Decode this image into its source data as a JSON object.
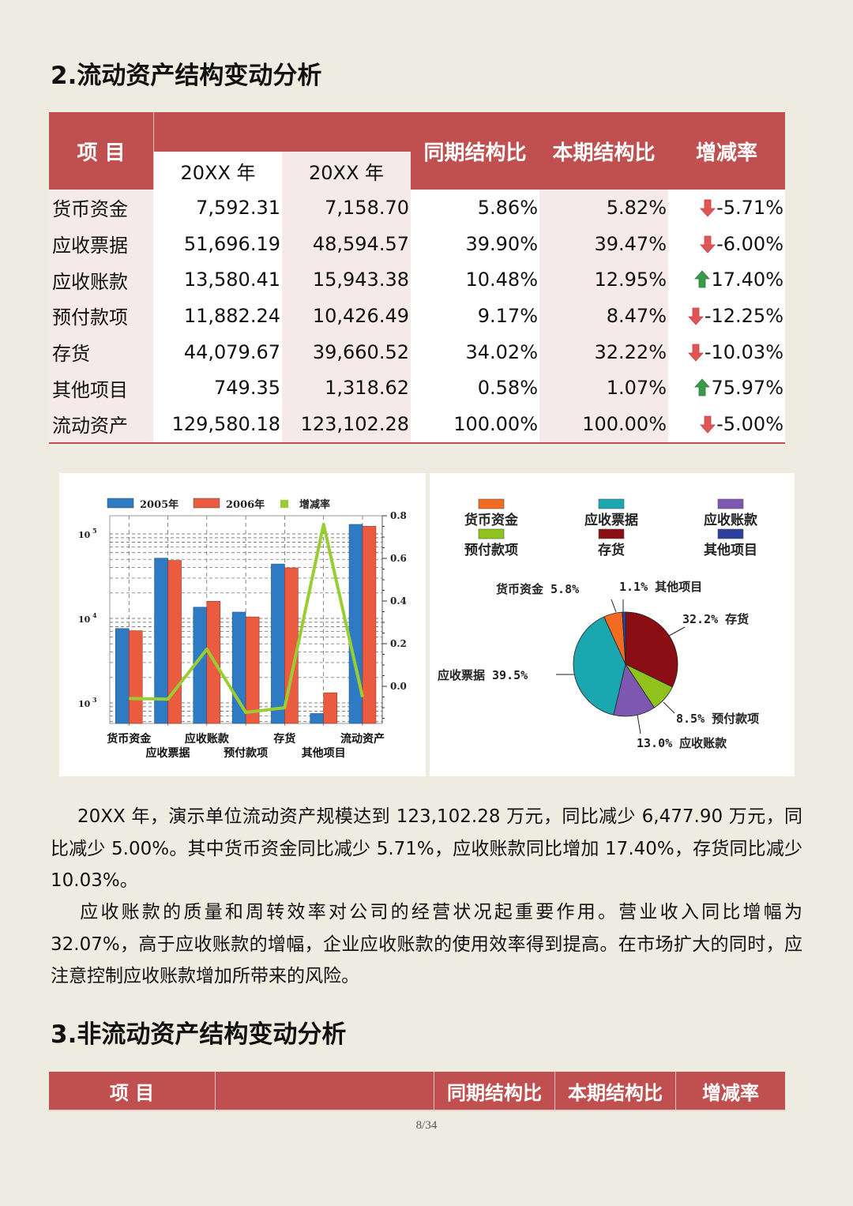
{
  "sections": {
    "current_assets_title": "2.流动资产结构变动分析",
    "non_current_assets_title": "3.非流动资产结构变动分析"
  },
  "table1": {
    "headers": {
      "item": "项  目",
      "year_prev": "20XX 年",
      "year_curr": "20XX 年",
      "prev_ratio": "同期结构比",
      "curr_ratio": "本期结构比",
      "change_rate": "增减率"
    },
    "rows": [
      {
        "item": "货币资金",
        "prev": "7,592.31",
        "curr": "7,158.70",
        "prev_ratio": "5.86%",
        "curr_ratio": "5.82%",
        "change": "-5.71%",
        "trend": "down"
      },
      {
        "item": "应收票据",
        "prev": "51,696.19",
        "curr": "48,594.57",
        "prev_ratio": "39.90%",
        "curr_ratio": "39.47%",
        "change": "-6.00%",
        "trend": "down"
      },
      {
        "item": "应收账款",
        "prev": "13,580.41",
        "curr": "15,943.38",
        "prev_ratio": "10.48%",
        "curr_ratio": "12.95%",
        "change": "17.40%",
        "trend": "up"
      },
      {
        "item": "预付款项",
        "prev": "11,882.24",
        "curr": "10,426.49",
        "prev_ratio": "9.17%",
        "curr_ratio": "8.47%",
        "change": "-12.25%",
        "trend": "down"
      },
      {
        "item": "存货",
        "prev": "44,079.67",
        "curr": "39,660.52",
        "prev_ratio": "34.02%",
        "curr_ratio": "32.22%",
        "change": "-10.03%",
        "trend": "down"
      },
      {
        "item": "其他项目",
        "prev": "749.35",
        "curr": "1,318.62",
        "prev_ratio": "0.58%",
        "curr_ratio": "1.07%",
        "change": "75.97%",
        "trend": "up"
      },
      {
        "item": "流动资产",
        "prev": "129,580.18",
        "curr": "123,102.28",
        "prev_ratio": "100.00%",
        "curr_ratio": "100.00%",
        "change": "-5.00%",
        "trend": "down"
      }
    ]
  },
  "colors": {
    "header_red": "#c0504f",
    "row_pink": "#f6e9e9",
    "arrow_down": "#e05656",
    "arrow_up": "#3a9a4a",
    "bar_2005": "#2e7bc4",
    "bar_2006": "#ea5b3f",
    "line_rate": "#9acd32"
  },
  "chart_data": [
    {
      "type": "bar",
      "title": "",
      "legend": [
        "2005年",
        "2006年",
        "增减率"
      ],
      "legend_position": "top",
      "categories": [
        "货币资金",
        "应收票据",
        "应收账款",
        "预付款项",
        "存货",
        "其他项目",
        "流动资产"
      ],
      "series": [
        {
          "name": "2005年",
          "values": [
            7592.31,
            51696.19,
            13580.41,
            11882.24,
            44079.67,
            749.35,
            129580.18
          ]
        },
        {
          "name": "2006年",
          "values": [
            7158.7,
            48594.57,
            15943.38,
            10426.49,
            39660.52,
            1318.62,
            123102.28
          ]
        },
        {
          "name": "增减率",
          "type": "line",
          "axis": "right",
          "values": [
            -0.057,
            -0.06,
            0.174,
            -0.1225,
            -0.1003,
            0.7597,
            -0.05
          ]
        }
      ],
      "y_left": {
        "scale": "log",
        "ticks": [
          "10³",
          "10⁴",
          "10⁵"
        ]
      },
      "y_right": {
        "ticks": [
          "0.0",
          "0.2",
          "0.4",
          "0.6",
          "0.8"
        ],
        "range": [
          -0.2,
          0.8
        ]
      },
      "grid": true
    },
    {
      "type": "pie",
      "legend": [
        "货币资金",
        "应收票据",
        "应收账款",
        "预付款项",
        "存货",
        "其他项目"
      ],
      "legend_position": "top",
      "slices": [
        {
          "label": "货币资金",
          "value": 5.8,
          "text": "货币资金 5.8%",
          "color": "#f26b21"
        },
        {
          "label": "应收票据",
          "value": 39.5,
          "text": "应收票据 39.5%",
          "color": "#1aa7b0"
        },
        {
          "label": "应收账款",
          "value": 13.0,
          "text": "13.0% 应收账款",
          "color": "#7e58b0"
        },
        {
          "label": "预付款项",
          "value": 8.5,
          "text": "8.5% 预付款项",
          "color": "#8fc21a"
        },
        {
          "label": "存货",
          "value": 32.2,
          "text": "32.2% 存货",
          "color": "#8b0d14"
        },
        {
          "label": "其他项目",
          "value": 1.1,
          "text": "1.1% 其他项目",
          "color": "#2c3f9c"
        }
      ]
    }
  ],
  "paragraphs": {
    "p1": "20XX 年，演示单位流动资产规模达到 123,102.28 万元，同比减少 6,477.90 万元，同比减少 5.00%。其中货币资金同比减少 5.71%，应收账款同比增加 17.40%，存货同比减少 10.03%。",
    "p2": "应收账款的质量和周转效率对公司的经营状况起重要作用。营业收入同比增幅为 32.07%，高于应收账款的增幅，企业应收账款的使用效率得到提高。在市场扩大的同时，应注意控制应收账款增加所带来的风险。"
  },
  "table2": {
    "headers": {
      "item": "项  目",
      "blank": "",
      "prev_ratio": "同期结构比",
      "curr_ratio": "本期结构比",
      "change_rate": "增减率"
    }
  },
  "footer": {
    "page_number": "8/34"
  }
}
